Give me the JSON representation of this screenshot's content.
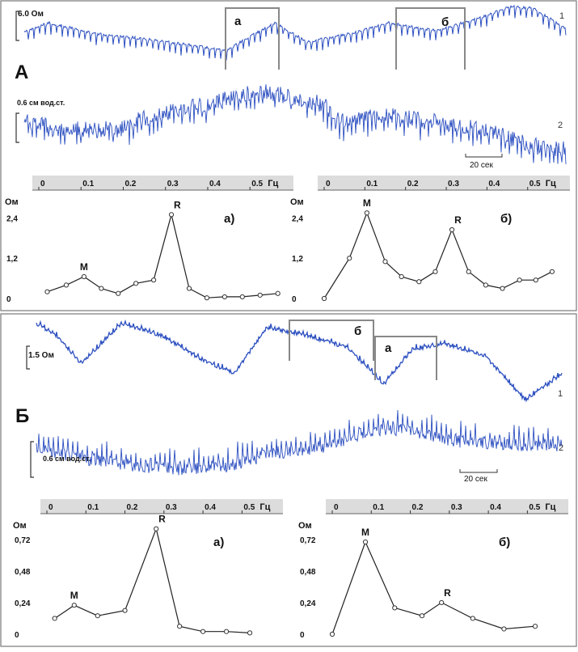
{
  "panel_A": {
    "label": "А",
    "trace1": {
      "scale_label": "6.0 Ом",
      "number": "1"
    },
    "trace2": {
      "scale_label": "0.6 см вод.ст.",
      "number": "2"
    },
    "window_a": "а",
    "window_b": "б",
    "time_scale": "20 сек"
  },
  "panel_B": {
    "label": "Б",
    "trace1": {
      "scale_label": "1.5 Ом",
      "number": "1"
    },
    "trace2": {
      "scale_label": "0.6 см вод.ст.",
      "number": "2"
    },
    "window_a": "а",
    "window_b": "б",
    "time_scale": "20 сек"
  },
  "chart_data": [
    {
      "type": "line",
      "id": "A-a",
      "panel_label": "а)",
      "ylabel": "Ом",
      "xunit": "Гц",
      "xticks": [
        "0",
        "0.1",
        "0.2",
        "0.3",
        "0.4",
        "0.5"
      ],
      "yticks": [
        "0",
        "1,2",
        "2,4"
      ],
      "xlim": [
        0,
        0.58
      ],
      "ylim": [
        0,
        2.7
      ],
      "x": [
        0.02,
        0.065,
        0.107,
        0.148,
        0.188,
        0.23,
        0.272,
        0.314,
        0.356,
        0.398,
        0.44,
        0.482,
        0.524,
        0.566
      ],
      "y": [
        0.2,
        0.4,
        0.65,
        0.3,
        0.15,
        0.45,
        0.55,
        2.5,
        0.3,
        0.02,
        0.05,
        0.05,
        0.1,
        0.15
      ],
      "peaks": [
        {
          "label": "M",
          "x": 0.107,
          "y": 0.65
        },
        {
          "label": "R",
          "x": 0.314,
          "y": 2.5
        }
      ]
    },
    {
      "type": "line",
      "id": "A-b",
      "panel_label": "б)",
      "ylabel": "Ом",
      "xunit": "Гц",
      "xticks": [
        "0",
        "0.1",
        "0.2",
        "0.3",
        "0.4",
        "0.5"
      ],
      "yticks": [
        "0",
        "1,2",
        "2,4"
      ],
      "xlim": [
        0,
        0.58
      ],
      "ylim": [
        0,
        2.7
      ],
      "x": [
        0.0,
        0.062,
        0.105,
        0.15,
        0.19,
        0.233,
        0.273,
        0.314,
        0.355,
        0.397,
        0.438,
        0.48,
        0.52,
        0.56
      ],
      "y": [
        0.0,
        1.2,
        2.55,
        1.1,
        0.65,
        0.5,
        0.8,
        2.05,
        0.8,
        0.4,
        0.3,
        0.55,
        0.55,
        0.8
      ],
      "peaks": [
        {
          "label": "M",
          "x": 0.105,
          "y": 2.55
        },
        {
          "label": "R",
          "x": 0.314,
          "y": 2.05
        }
      ]
    },
    {
      "type": "line",
      "id": "B-a",
      "panel_label": "а)",
      "ylabel": "Ом",
      "xunit": "Гц",
      "xticks": [
        "0",
        "0.1",
        "0.2",
        "0.3",
        "0.4",
        "0.5"
      ],
      "yticks": [
        "0",
        "0,24",
        "0,48",
        "0,72"
      ],
      "xlim": [
        0,
        0.58
      ],
      "ylim": [
        0,
        0.78
      ],
      "x": [
        0.02,
        0.07,
        0.13,
        0.2,
        0.28,
        0.34,
        0.4,
        0.46,
        0.52
      ],
      "y": [
        0.12,
        0.22,
        0.14,
        0.18,
        0.8,
        0.06,
        0.02,
        0.02,
        0.01
      ],
      "peaks": [
        {
          "label": "M",
          "x": 0.07,
          "y": 0.22
        },
        {
          "label": "R",
          "x": 0.28,
          "y": 0.8
        }
      ]
    },
    {
      "type": "line",
      "id": "B-b",
      "panel_label": "б)",
      "ylabel": "Ом",
      "xunit": "Гц",
      "xticks": [
        "0",
        "0.1",
        "0.2",
        "0.3",
        "0.4",
        "0.5"
      ],
      "yticks": [
        "0",
        "0,24",
        "0,48",
        "0,72"
      ],
      "xlim": [
        0,
        0.58
      ],
      "ylim": [
        0,
        0.78
      ],
      "x": [
        0.0,
        0.085,
        0.16,
        0.23,
        0.28,
        0.36,
        0.44,
        0.52
      ],
      "y": [
        0.0,
        0.7,
        0.2,
        0.14,
        0.24,
        0.12,
        0.04,
        0.06
      ],
      "peaks": [
        {
          "label": "M",
          "x": 0.085,
          "y": 0.7
        },
        {
          "label": "R",
          "x": 0.28,
          "y": 0.24
        }
      ]
    }
  ]
}
